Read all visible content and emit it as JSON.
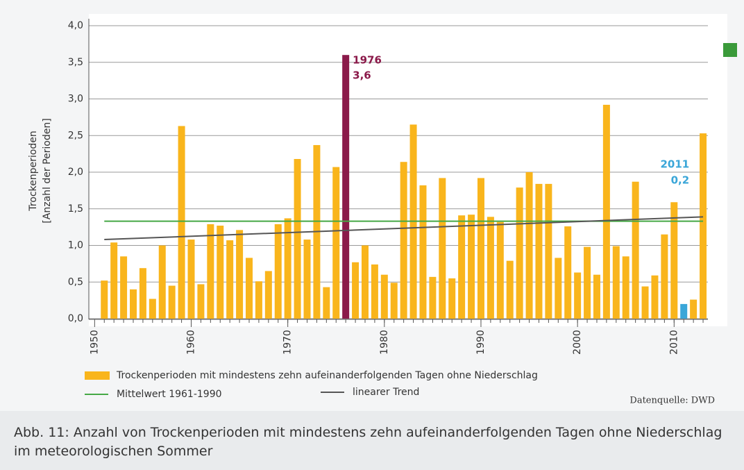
{
  "chart_data": {
    "type": "bar",
    "y_label": [
      "Trockenperioden",
      "[Anzahl der Perioden]"
    ],
    "x": [
      1951,
      1952,
      1953,
      1954,
      1955,
      1956,
      1957,
      1958,
      1959,
      1960,
      1961,
      1962,
      1963,
      1964,
      1965,
      1966,
      1967,
      1968,
      1969,
      1970,
      1971,
      1972,
      1973,
      1974,
      1975,
      1976,
      1977,
      1978,
      1979,
      1980,
      1981,
      1982,
      1983,
      1984,
      1985,
      1986,
      1987,
      1988,
      1989,
      1990,
      1991,
      1992,
      1993,
      1994,
      1995,
      1996,
      1997,
      1998,
      1999,
      2000,
      2001,
      2002,
      2003,
      2004,
      2005,
      2006,
      2007,
      2008,
      2009,
      2010,
      2011,
      2012,
      2013
    ],
    "series": [
      {
        "name": "Trockenperioden mit mindestens zehn aufeinanderfolgenden Tagen ohne Niederschlag",
        "type": "bar",
        "color": "#f9b51c",
        "values": [
          0.52,
          1.04,
          0.85,
          0.4,
          0.69,
          0.27,
          1.0,
          0.45,
          2.63,
          1.08,
          0.47,
          1.29,
          1.27,
          1.07,
          1.21,
          0.83,
          0.51,
          0.65,
          1.29,
          1.37,
          2.18,
          1.08,
          2.37,
          0.43,
          2.07,
          3.6,
          0.77,
          1.0,
          0.74,
          0.6,
          0.49,
          2.14,
          2.65,
          1.82,
          0.57,
          1.92,
          0.55,
          1.41,
          1.42,
          1.92,
          1.39,
          1.32,
          0.79,
          1.79,
          2.0,
          1.84,
          1.84,
          0.83,
          1.26,
          0.63,
          0.98,
          0.6,
          2.92,
          0.99,
          0.85,
          1.87,
          0.44,
          0.59,
          1.15,
          1.59,
          0.2,
          0.26,
          2.53
        ]
      },
      {
        "name": "Mittelwert 1961-1990",
        "type": "line",
        "color": "#45a845",
        "x": [
          1951,
          2013
        ],
        "values": [
          1.33,
          1.33
        ]
      },
      {
        "name": "linearer Trend",
        "type": "line",
        "color": "#555555",
        "x": [
          1951,
          2013
        ],
        "values": [
          1.08,
          1.39
        ]
      }
    ],
    "annotations": [
      {
        "x": 1976,
        "lines": [
          "1976",
          "3,6"
        ],
        "color": "#8b1a4a"
      },
      {
        "x": 2011,
        "lines": [
          "2011",
          "0,2"
        ],
        "color": "#3aa6d8"
      }
    ],
    "xlim": [
      1949.4,
      2013.5
    ],
    "xticks": [
      1950,
      1960,
      1970,
      1980,
      1990,
      2000,
      2010
    ],
    "ylim": [
      0,
      4
    ],
    "yticks": [
      {
        "value": 0,
        "label": "0,0"
      },
      {
        "value": 0.5,
        "label": "0,5"
      },
      {
        "value": 1,
        "label": "1,0"
      },
      {
        "value": 1.5,
        "label": "1,5"
      },
      {
        "value": 2,
        "label": "2,0"
      },
      {
        "value": 2.5,
        "label": "2,5"
      },
      {
        "value": 3,
        "label": "3,0"
      },
      {
        "value": 3.5,
        "label": "3,5"
      },
      {
        "value": 4,
        "label": "4,0"
      }
    ],
    "grid": true,
    "source": "Datenquelle: DWD",
    "caption": "Abb. 11: Anzahl von Trockenperioden mit mindestens zehn aufeinanderfolgenden Tagen ohne Niederschlag im meteorologischen Sommer"
  }
}
